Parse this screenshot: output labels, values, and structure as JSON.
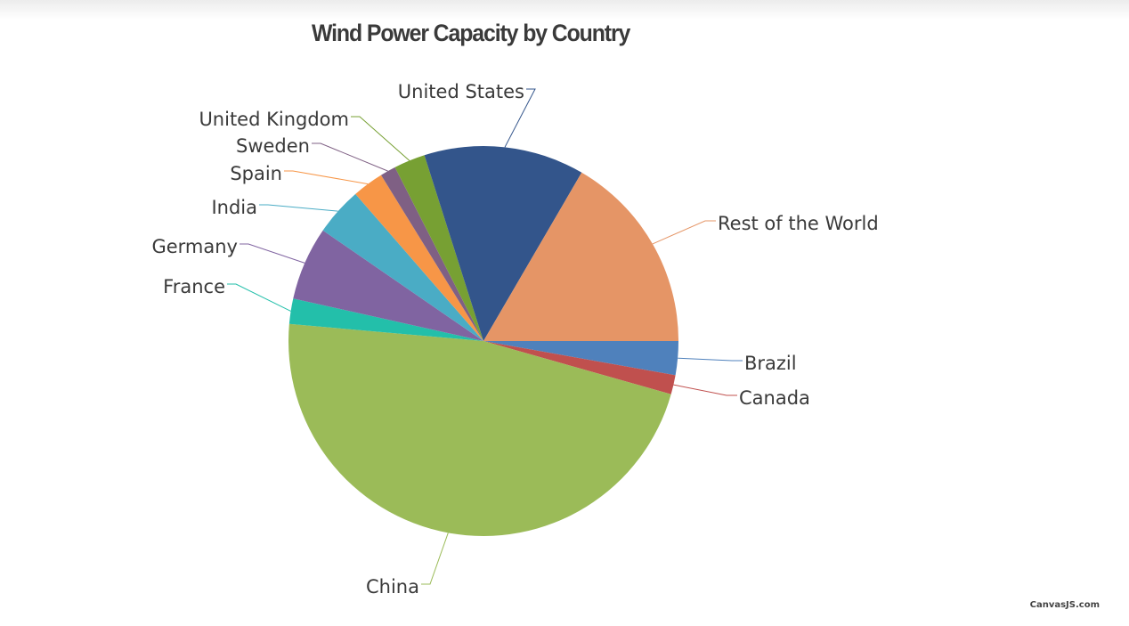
{
  "chart_data": {
    "type": "pie",
    "title": "Wind Power Capacity by Country",
    "slices": [
      {
        "label": "Brazil",
        "value": 2.8,
        "color": "#4f81bc"
      },
      {
        "label": "Canada",
        "value": 1.6,
        "color": "#c0504e"
      },
      {
        "label": "China",
        "value": 47.0,
        "color": "#9bbb58"
      },
      {
        "label": "France",
        "value": 2.1,
        "color": "#23bfaa"
      },
      {
        "label": "Germany",
        "value": 6.1,
        "color": "#8064a1"
      },
      {
        "label": "India",
        "value": 4.0,
        "color": "#4aacc5"
      },
      {
        "label": "Spain",
        "value": 2.6,
        "color": "#f79647"
      },
      {
        "label": "Sweden",
        "value": 1.3,
        "color": "#7f6084"
      },
      {
        "label": "United Kingdom",
        "value": 2.6,
        "color": "#77a033"
      },
      {
        "label": "United States",
        "value": 13.3,
        "color": "#33558b"
      },
      {
        "label": "Rest of the World",
        "value": 16.6,
        "color": "#e59566"
      }
    ]
  },
  "credit": "CanvasJS.com"
}
